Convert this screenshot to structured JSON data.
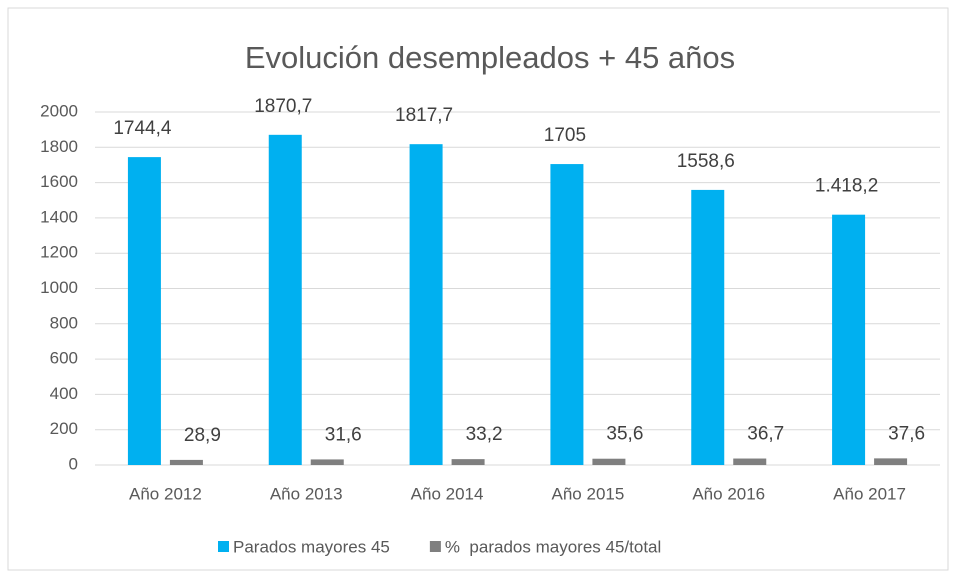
{
  "chart_data": {
    "type": "bar",
    "title": "Evolución desempleados + 45 años",
    "categories": [
      "Año 2012",
      "Año 2013",
      "Año 2014",
      "Año 2015",
      "Año 2016",
      "Año 2017"
    ],
    "series": [
      {
        "name": "Parados mayores 45",
        "color": "#00b0f0",
        "values": [
          1744.4,
          1870.7,
          1817.7,
          1705,
          1558.6,
          1418.2
        ],
        "value_labels": [
          "1744,4",
          "1870,7",
          "1817,7",
          "1705",
          "1558,6",
          "1.418,2"
        ]
      },
      {
        "name": "%  parados mayores 45/total",
        "color": "#7f7f7f",
        "values": [
          28.9,
          31.6,
          33.2,
          35.6,
          36.7,
          37.6
        ],
        "value_labels": [
          "28,9",
          "31,6",
          "33,2",
          "35,6",
          "36,7",
          "37,6"
        ]
      }
    ],
    "ylim": [
      0,
      2000
    ],
    "yticks": [
      0,
      200,
      400,
      600,
      800,
      1000,
      1200,
      1400,
      1600,
      1800,
      2000
    ],
    "grid": true,
    "legend": "bottom"
  }
}
